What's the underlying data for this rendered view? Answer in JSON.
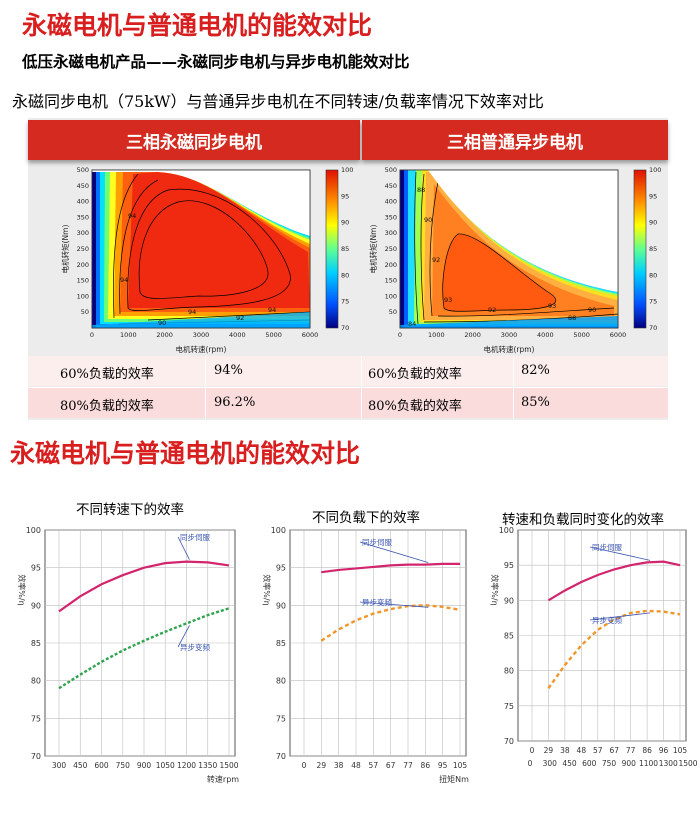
{
  "section1": {
    "title": "永磁电机与普通电机的能效对比",
    "subtitle": "低压永磁电机产品——永磁同步电机与异步电机能效对比",
    "description": "永磁同步电机（75kW）与普通异步电机在不同转速/负载率情况下效率对比"
  },
  "comparison": {
    "left": {
      "banner": "三相永磁同步电机",
      "rows": [
        {
          "label": "60%负载的效率",
          "value": "94%"
        },
        {
          "label": "80%负载的效率",
          "value": "96.2%"
        }
      ]
    },
    "right": {
      "banner": "三相普通异步电机",
      "rows": [
        {
          "label": "60%负载的效率",
          "value": "82%"
        },
        {
          "label": "80%负载的效率",
          "value": "85%"
        }
      ]
    }
  },
  "section2": {
    "title": "永磁电机与普通电机的能效对比"
  },
  "chart_data": [
    {
      "type": "heatmap",
      "xlabel": "电机转速(rpm)",
      "ylabel": "电机转矩(Nm)",
      "xlim": [
        0,
        6000
      ],
      "ylim": [
        0,
        500
      ],
      "x_ticks": [
        "0",
        "1000",
        "2000",
        "3000",
        "4000",
        "5000",
        "6000"
      ],
      "y_ticks": [
        "0",
        "50",
        "100",
        "150",
        "200",
        "250",
        "300",
        "350",
        "400",
        "450",
        "500"
      ],
      "colorbar_ticks": [
        "70",
        "75",
        "80",
        "85",
        "90",
        "95",
        "100"
      ],
      "contour_labels": [
        "94",
        "94",
        "94",
        "94",
        "92",
        "90"
      ]
    },
    {
      "type": "heatmap",
      "xlabel": "电机转速(rpm)",
      "ylabel": "电机转矩(Nm)",
      "xlim": [
        0,
        6000
      ],
      "ylim": [
        0,
        500
      ],
      "x_ticks": [
        "0",
        "1000",
        "2000",
        "3000",
        "4000",
        "5000",
        "6000"
      ],
      "y_ticks": [
        "0",
        "50",
        "100",
        "150",
        "200",
        "250",
        "300",
        "350",
        "400",
        "450",
        "500"
      ],
      "colorbar_ticks": [
        "70",
        "75",
        "80",
        "85",
        "90",
        "95",
        "100"
      ],
      "contour_labels": [
        "88",
        "90",
        "92",
        "93",
        "92",
        "93",
        "90",
        "88",
        "84"
      ]
    },
    {
      "type": "line",
      "title": "不同转速下的效率",
      "xlabel": "转速rpm",
      "ylabel": "效率%/η",
      "x": [
        300,
        450,
        600,
        750,
        900,
        1050,
        1200,
        1350,
        1500
      ],
      "ylim": [
        70,
        100
      ],
      "y_ticks": [
        "70",
        "75",
        "80",
        "85",
        "90",
        "95",
        "100"
      ],
      "series": [
        {
          "name": "同步伺服",
          "color": "#d2256e",
          "values": [
            89.2,
            91.2,
            92.8,
            94.0,
            95.0,
            95.6,
            95.8,
            95.7,
            95.3
          ]
        },
        {
          "name": "异步变频",
          "color": "#2ea44f",
          "values": [
            79.0,
            80.8,
            82.5,
            84.0,
            85.3,
            86.5,
            87.6,
            88.7,
            89.6
          ]
        }
      ]
    },
    {
      "type": "line",
      "title": "不同负载下的效率",
      "xlabel": "扭矩Nm",
      "ylabel": "效率%/η",
      "x": [
        0,
        29,
        38,
        48,
        57,
        67,
        77,
        86,
        95,
        105
      ],
      "ylim": [
        70,
        100
      ],
      "y_ticks": [
        "70",
        "75",
        "80",
        "85",
        "90",
        "95",
        "100"
      ],
      "series": [
        {
          "name": "同步伺服",
          "color": "#d2256e",
          "values": [
            null,
            94.4,
            94.7,
            94.9,
            95.1,
            95.3,
            95.4,
            95.4,
            95.5,
            95.5
          ]
        },
        {
          "name": "异步变频",
          "color": "#f0962a",
          "values": [
            null,
            85.3,
            86.8,
            88.0,
            88.9,
            89.5,
            89.9,
            90.0,
            89.8,
            89.4
          ]
        }
      ]
    },
    {
      "type": "line",
      "title": "转速和负载同时变化的效率",
      "xlabel": "",
      "ylabel": "效率%/η",
      "x_ticks_top": [
        "0",
        "29",
        "38",
        "48",
        "57",
        "67",
        "77",
        "86",
        "96",
        "105"
      ],
      "x_ticks_bottom": [
        "0",
        "300",
        "450",
        "600",
        "750",
        "900",
        "1100",
        "1300",
        "1500"
      ],
      "ylim": [
        70,
        100
      ],
      "y_ticks": [
        "70",
        "75",
        "80",
        "85",
        "90",
        "95",
        "100"
      ],
      "series": [
        {
          "name": "同步伺服",
          "color": "#d2256e",
          "values": [
            null,
            90.0,
            91.4,
            92.6,
            93.6,
            94.4,
            95.0,
            95.4,
            95.5,
            95.0
          ]
        },
        {
          "name": "异步变频",
          "color": "#f0962a",
          "values": [
            null,
            77.5,
            80.8,
            83.6,
            85.8,
            87.3,
            88.2,
            88.5,
            88.4,
            88.0
          ]
        }
      ]
    }
  ]
}
